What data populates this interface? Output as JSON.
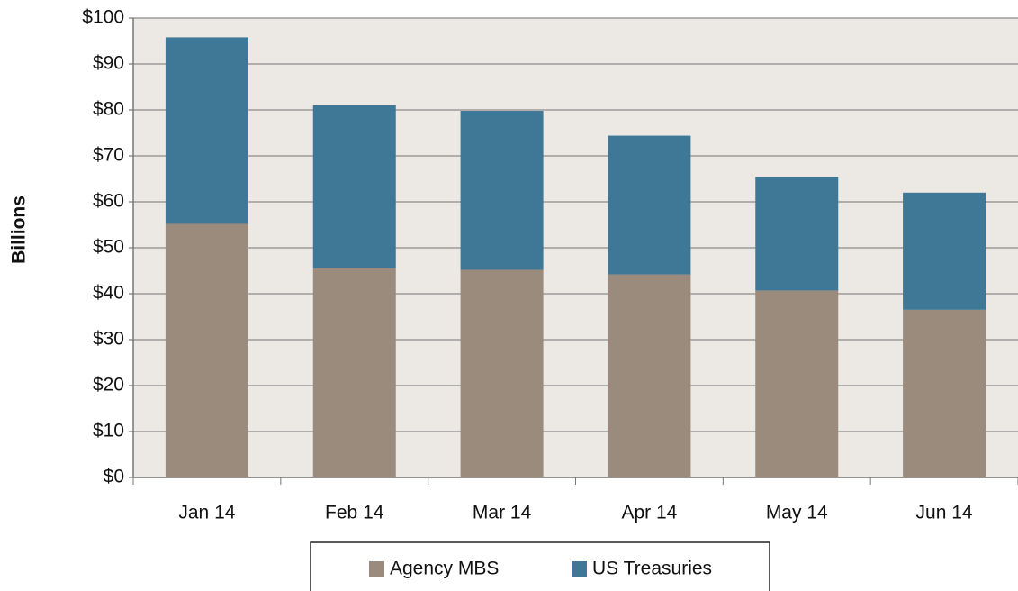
{
  "chart_data": {
    "type": "bar",
    "stacked": true,
    "y_label": "Billions",
    "categories": [
      "Jan 14",
      "Feb 14",
      "Mar 14",
      "Apr 14",
      "May 14",
      "Jun 14"
    ],
    "series": [
      {
        "name": "Agency MBS",
        "color": "#9a8b7c",
        "values": [
          55.2,
          45.5,
          45.2,
          44.2,
          40.7,
          36.5
        ]
      },
      {
        "name": "US Treasuries",
        "color": "#3f7896",
        "values": [
          40.6,
          35.5,
          34.6,
          30.2,
          24.7,
          25.5
        ]
      }
    ],
    "ylim": [
      0,
      100
    ],
    "yticks": [
      {
        "value": 0,
        "label": "$0"
      },
      {
        "value": 10,
        "label": "$10"
      },
      {
        "value": 20,
        "label": "$20"
      },
      {
        "value": 30,
        "label": "$30"
      },
      {
        "value": 40,
        "label": "$40"
      },
      {
        "value": 50,
        "label": "$50"
      },
      {
        "value": 60,
        "label": "$60"
      },
      {
        "value": 70,
        "label": "$70"
      },
      {
        "value": 80,
        "label": "$80"
      },
      {
        "value": 90,
        "label": "$90"
      },
      {
        "value": 100,
        "label": "$100"
      }
    ],
    "grid": true,
    "legend": "bottom"
  }
}
